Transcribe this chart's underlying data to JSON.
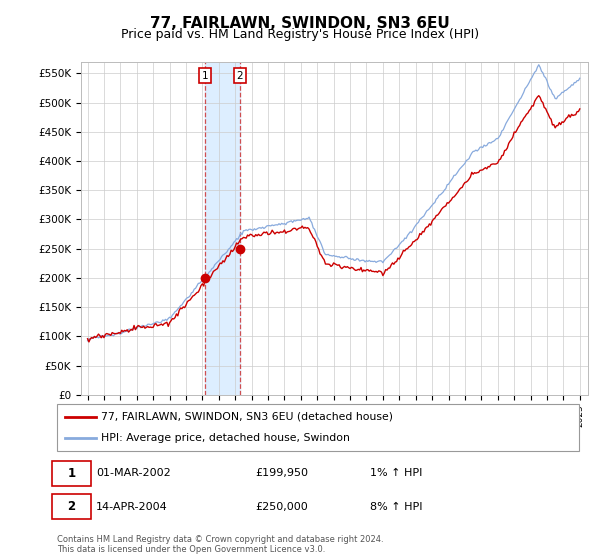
{
  "title": "77, FAIRLAWN, SWINDON, SN3 6EU",
  "subtitle": "Price paid vs. HM Land Registry's House Price Index (HPI)",
  "ylim": [
    0,
    570000
  ],
  "yticks": [
    0,
    50000,
    100000,
    150000,
    200000,
    250000,
    300000,
    350000,
    400000,
    450000,
    500000,
    550000
  ],
  "ytick_labels": [
    "£0",
    "£50K",
    "£100K",
    "£150K",
    "£200K",
    "£250K",
    "£300K",
    "£350K",
    "£400K",
    "£450K",
    "£500K",
    "£550K"
  ],
  "line1_color": "#cc0000",
  "line2_color": "#88aadd",
  "shade_color": "#ddeeff",
  "line1_label": "77, FAIRLAWN, SWINDON, SN3 6EU (detached house)",
  "line2_label": "HPI: Average price, detached house, Swindon",
  "p1_year": 2002.17,
  "p1_price": 199950,
  "p2_year": 2004.29,
  "p2_price": 250000,
  "table_row1": [
    "1",
    "01-MAR-2002",
    "£199,950",
    "1% ↑ HPI"
  ],
  "table_row2": [
    "2",
    "14-APR-2004",
    "£250,000",
    "8% ↑ HPI"
  ],
  "footnote": "Contains HM Land Registry data © Crown copyright and database right 2024.\nThis data is licensed under the Open Government Licence v3.0.",
  "background_color": "#ffffff",
  "grid_color": "#cccccc",
  "title_fontsize": 11,
  "subtitle_fontsize": 9
}
